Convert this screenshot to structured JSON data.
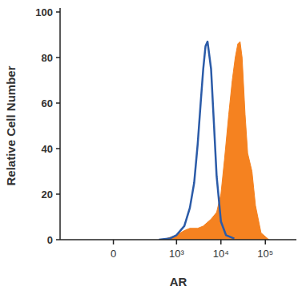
{
  "chart_data": {
    "type": "line",
    "x_label": "AR",
    "y_label": "Relative Cell Number",
    "xlim": [
      -600,
      500000
    ],
    "xticks": [
      0,
      {
        "value": 1000,
        "label": "10³"
      },
      {
        "value": 10000,
        "label": "10⁴"
      },
      {
        "value": 100000,
        "label": "10⁵"
      }
    ],
    "ylim": [
      0,
      100
    ],
    "yticks": [
      0,
      20,
      40,
      60,
      80,
      100
    ],
    "grid": false,
    "series": [
      {
        "type": "area",
        "color": "#f58220",
        "x": [
          500,
          1000,
          1500,
          2000,
          3000,
          4000,
          6000,
          8000,
          10000,
          12000,
          15000,
          18000,
          21000,
          24000,
          27000,
          30000,
          35000,
          40000,
          50000,
          60000,
          80000,
          120000
        ],
        "values": [
          0,
          2,
          4,
          5,
          5,
          6,
          9,
          12,
          20,
          35,
          55,
          70,
          80,
          86,
          87,
          80,
          55,
          38,
          30,
          15,
          3,
          0
        ]
      },
      {
        "type": "line",
        "color": "#2b5ba8",
        "x": [
          400,
          700,
          1000,
          1500,
          2000,
          2500,
          3000,
          3500,
          4000,
          4500,
          5000,
          6000,
          7000,
          8000,
          10000,
          13000,
          20000
        ],
        "values": [
          0,
          0.5,
          2,
          6,
          14,
          25,
          42,
          60,
          75,
          85,
          87,
          75,
          50,
          28,
          8,
          2,
          0.5
        ]
      }
    ]
  }
}
